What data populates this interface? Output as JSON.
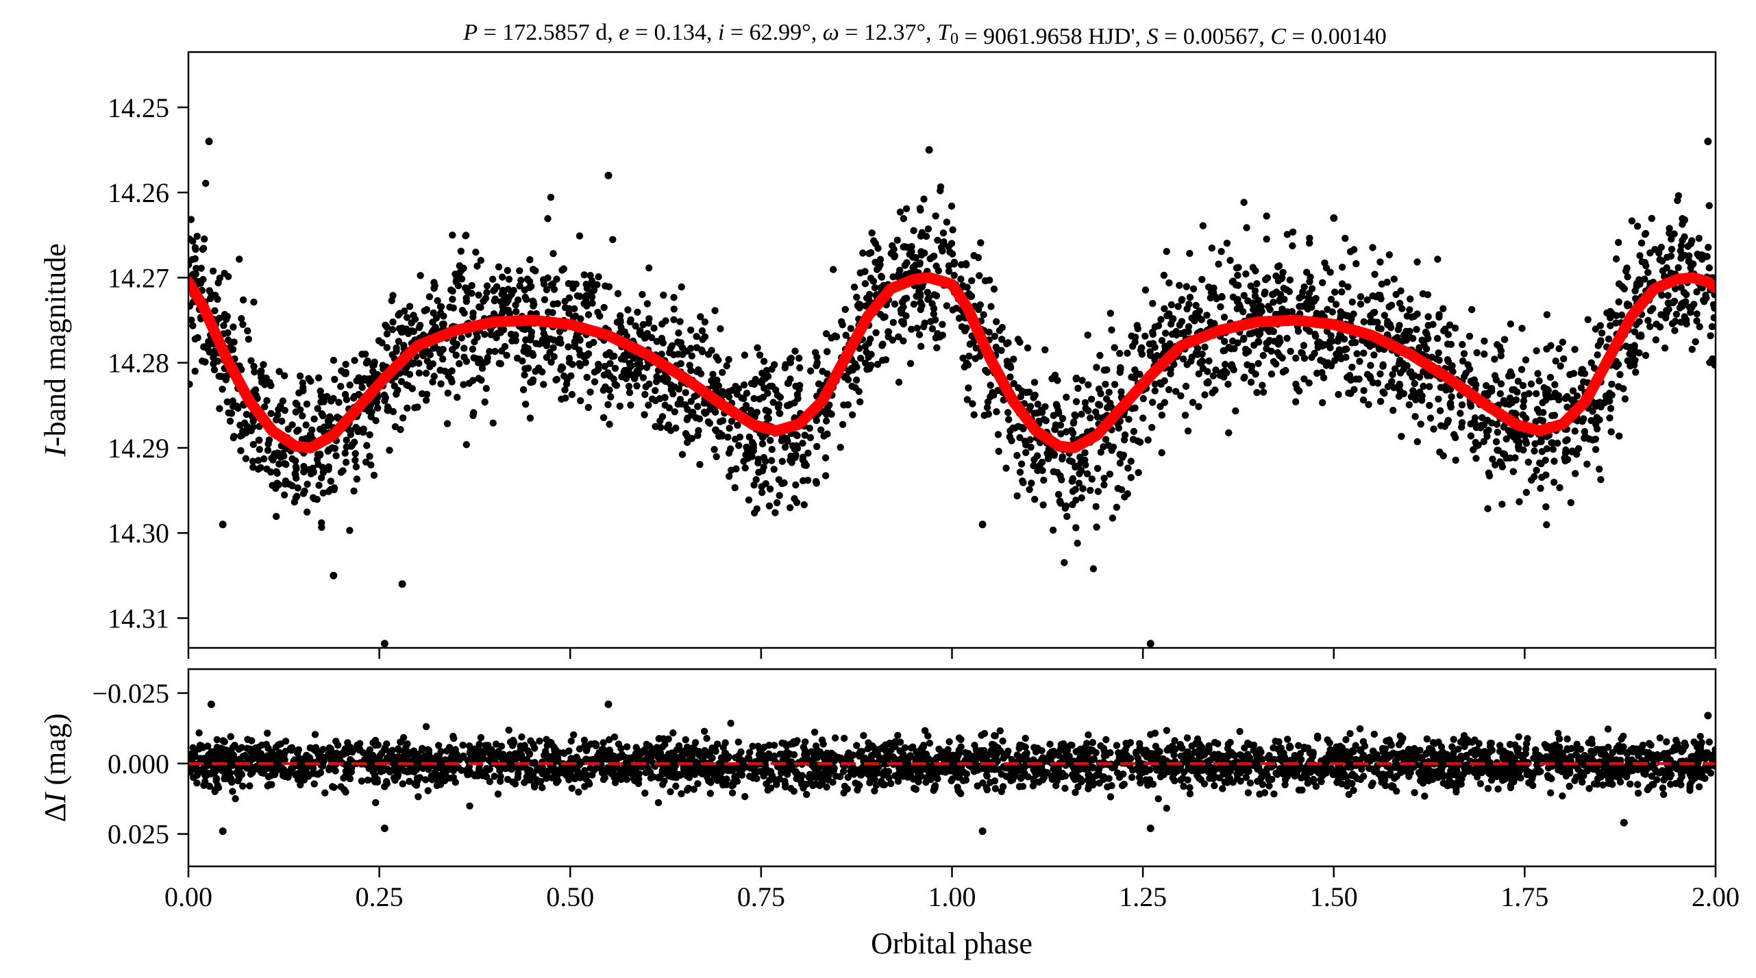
{
  "title": "P = 172.5857 d, e = 0.134, i = 62.99°, ω = 12.37°, T0 = 9061.9658 HJD', S = 0.00567, C = 0.00140",
  "colors": {
    "points": "#000000",
    "model": "#ff0000",
    "zero_line": "#ff0000",
    "axes": "#000000"
  },
  "chart_data": [
    {
      "type": "scatter",
      "panel": "top",
      "ylabel": "I-band magnitude",
      "xlabel": "",
      "xlim": [
        0.0,
        2.0
      ],
      "ylim": [
        14.3135,
        14.2435
      ],
      "y_inverted": true,
      "yticks": [
        "14.25",
        "14.26",
        "14.27",
        "14.28",
        "14.29",
        "14.30",
        "14.31"
      ],
      "grid": false,
      "series": [
        {
          "style": "points",
          "description_points": "dense black photometry points scattered around the model",
          "x": [
            0.0,
            0.02,
            0.05,
            0.1,
            0.15,
            0.2,
            0.25,
            0.3,
            0.35,
            0.4,
            0.45,
            0.5,
            0.55,
            0.6,
            0.65,
            0.7,
            0.75,
            0.8,
            0.85,
            0.9,
            0.95,
            0.975,
            1.0,
            1.05,
            1.1,
            1.15,
            1.2,
            1.25,
            1.3,
            1.35,
            1.4,
            1.45,
            1.5,
            1.55,
            1.6,
            1.65,
            1.7,
            1.75,
            1.8,
            1.85,
            1.9,
            1.95,
            1.975,
            2.0
          ],
          "y": [
            14.272,
            14.276,
            14.281,
            14.286,
            14.289,
            14.288,
            14.284,
            14.28,
            14.277,
            14.2755,
            14.275,
            14.2755,
            14.277,
            14.279,
            14.282,
            14.285,
            14.288,
            14.288,
            14.284,
            14.277,
            14.2705,
            14.27,
            14.272,
            14.281,
            14.286,
            14.289,
            14.288,
            14.284,
            14.28,
            14.277,
            14.2755,
            14.275,
            14.2755,
            14.277,
            14.279,
            14.282,
            14.285,
            14.288,
            14.288,
            14.284,
            14.277,
            14.2705,
            14.27,
            14.272
          ],
          "scatter_sigma": 0.007,
          "outliers": [
            {
              "x": 0.027,
              "y": 14.254
            },
            {
              "x": 0.045,
              "y": 14.299
            },
            {
              "x": 0.257,
              "y": 14.313
            },
            {
              "x": 0.28,
              "y": 14.306
            },
            {
              "x": 0.19,
              "y": 14.305
            },
            {
              "x": 0.97,
              "y": 14.255
            },
            {
              "x": 1.04,
              "y": 14.299
            },
            {
              "x": 1.26,
              "y": 14.313
            },
            {
              "x": 1.99,
              "y": 14.254
            },
            {
              "x": 1.5,
              "y": 14.263
            },
            {
              "x": 0.55,
              "y": 14.258
            }
          ]
        },
        {
          "style": "line",
          "x": [
            0.0,
            0.02,
            0.05,
            0.08,
            0.11,
            0.14,
            0.16,
            0.19,
            0.22,
            0.26,
            0.3,
            0.35,
            0.4,
            0.45,
            0.5,
            0.55,
            0.6,
            0.65,
            0.7,
            0.74,
            0.77,
            0.8,
            0.83,
            0.86,
            0.89,
            0.92,
            0.95,
            0.97,
            0.99,
            1.0,
            1.02,
            1.05,
            1.08,
            1.11,
            1.14,
            1.16,
            1.19,
            1.22,
            1.26,
            1.3,
            1.35,
            1.4,
            1.45,
            1.5,
            1.55,
            1.6,
            1.65,
            1.7,
            1.74,
            1.77,
            1.8,
            1.83,
            1.86,
            1.89,
            1.92,
            1.95,
            1.97,
            1.99,
            2.0
          ],
          "y": [
            14.2705,
            14.2735,
            14.2795,
            14.2845,
            14.288,
            14.2898,
            14.29,
            14.2885,
            14.2855,
            14.2815,
            14.278,
            14.2762,
            14.2752,
            14.275,
            14.2755,
            14.2768,
            14.279,
            14.2818,
            14.285,
            14.2873,
            14.288,
            14.2872,
            14.2845,
            14.2795,
            14.2745,
            14.2713,
            14.2702,
            14.27,
            14.2705,
            14.2708,
            14.2735,
            14.2795,
            14.2845,
            14.288,
            14.2898,
            14.29,
            14.2885,
            14.2855,
            14.2815,
            14.278,
            14.2762,
            14.2752,
            14.275,
            14.2755,
            14.2768,
            14.279,
            14.2818,
            14.285,
            14.2873,
            14.288,
            14.2872,
            14.2845,
            14.2795,
            14.2745,
            14.2713,
            14.2702,
            14.27,
            14.2705,
            14.2712
          ]
        }
      ]
    },
    {
      "type": "scatter",
      "panel": "bottom",
      "xlabel": "Orbital phase",
      "ylabel": "ΔI (mag)",
      "xlim": [
        0.0,
        2.0
      ],
      "ylim": [
        0.0365,
        -0.0335
      ],
      "y_inverted": true,
      "xticks": [
        "0.00",
        "0.25",
        "0.50",
        "0.75",
        "1.00",
        "1.25",
        "1.50",
        "1.75",
        "2.00"
      ],
      "yticks": [
        "−0.025",
        "0.000",
        "0.025"
      ],
      "grid": false,
      "series": [
        {
          "style": "points",
          "x": [
            0.0,
            0.25,
            0.5,
            0.75,
            1.0,
            1.25,
            1.5,
            1.75,
            2.0
          ],
          "y": [
            0.0,
            0.0,
            0.0,
            0.0,
            0.0,
            0.0,
            0.0,
            0.0,
            0.0
          ],
          "scatter_sigma": 0.006,
          "outliers": [
            {
              "x": 0.045,
              "y": 0.024
            },
            {
              "x": 0.257,
              "y": 0.023
            },
            {
              "x": 1.04,
              "y": 0.024
            },
            {
              "x": 1.26,
              "y": 0.023
            },
            {
              "x": 0.03,
              "y": -0.021
            },
            {
              "x": 0.55,
              "y": -0.021
            },
            {
              "x": 1.88,
              "y": 0.021
            },
            {
              "x": 1.99,
              "y": -0.017
            }
          ]
        },
        {
          "style": "dashed-line",
          "x": [
            0.0,
            2.0
          ],
          "y": [
            0.0,
            0.0
          ]
        }
      ]
    }
  ]
}
